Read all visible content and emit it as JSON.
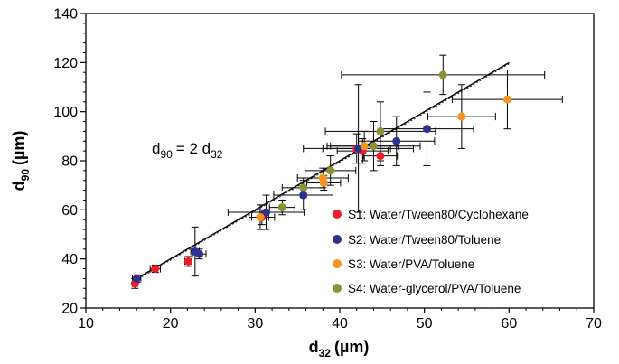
{
  "chart_data": {
    "type": "scatter",
    "xlabel_main": "d",
    "xlabel_sub": "32",
    "xlabel_unit": "(µm)",
    "ylabel_main": "d",
    "ylabel_sub": "90",
    "ylabel_unit": "(µm)",
    "xlim": [
      10,
      70
    ],
    "ylim": [
      20,
      140
    ],
    "x_ticks": [
      10,
      20,
      30,
      40,
      50,
      60,
      70
    ],
    "y_ticks": [
      20,
      40,
      60,
      80,
      100,
      120,
      140
    ],
    "grid": false,
    "legend_position": "bottom-right",
    "annotation": {
      "d_left": "d",
      "sub_left": "90",
      "middle": "= 2 d",
      "sub_right": "32"
    },
    "fit_line": {
      "slope": 2,
      "intercept": 0,
      "x_range": [
        15.5,
        60
      ]
    },
    "series": [
      {
        "name": "S1: Water/Tween80/Cyclohexane",
        "color": "#ee1c25",
        "points": [
          {
            "x": 15.8,
            "y": 30,
            "xerr": 0.3,
            "yerr": 2
          },
          {
            "x": 18.2,
            "y": 36,
            "xerr": 0.6,
            "yerr": 1.5
          },
          {
            "x": 22.1,
            "y": 39,
            "xerr": 0.4,
            "yerr": 2
          },
          {
            "x": 30.8,
            "y": 57,
            "xerr": 1.5,
            "yerr": 3
          },
          {
            "x": 42.0,
            "y": 85,
            "xerr": 4,
            "yerr": 6
          },
          {
            "x": 42.7,
            "y": 84,
            "xerr": 3,
            "yerr": 5
          },
          {
            "x": 44.8,
            "y": 82,
            "xerr": 2,
            "yerr": 4
          }
        ]
      },
      {
        "name": "S2: Water/Tween80/Toluene",
        "color": "#2e3192",
        "points": [
          {
            "x": 16.0,
            "y": 32,
            "xerr": 0.5,
            "yerr": 1.5
          },
          {
            "x": 22.9,
            "y": 43,
            "xerr": 0.5,
            "yerr": 10
          },
          {
            "x": 23.4,
            "y": 42,
            "xerr": 0.8,
            "yerr": 2
          },
          {
            "x": 31.3,
            "y": 59,
            "xerr": 4.5,
            "yerr": 7
          },
          {
            "x": 35.7,
            "y": 66,
            "xerr": 3.5,
            "yerr": 6
          },
          {
            "x": 42.2,
            "y": 85,
            "xerr": 6.5,
            "yerr": 26
          },
          {
            "x": 46.7,
            "y": 88,
            "xerr": 4.5,
            "yerr": 10
          },
          {
            "x": 50.3,
            "y": 93,
            "xerr": 5.5,
            "yerr": 15
          }
        ]
      },
      {
        "name": "S3: Water/PVA/Toluene",
        "color": "#f7941d",
        "points": [
          {
            "x": 30.6,
            "y": 57,
            "xerr": 1,
            "yerr": 5
          },
          {
            "x": 38.0,
            "y": 73,
            "xerr": 3,
            "yerr": 4
          },
          {
            "x": 38.1,
            "y": 71,
            "xerr": 2,
            "yerr": 3
          },
          {
            "x": 42.9,
            "y": 86,
            "xerr": 4,
            "yerr": 6
          },
          {
            "x": 54.4,
            "y": 98,
            "xerr": 4,
            "yerr": 13
          },
          {
            "x": 59.8,
            "y": 105,
            "xerr": 6.5,
            "yerr": 12
          }
        ]
      },
      {
        "name": "S4: Water-glycerol/PVA/Toluene",
        "color": "#8c9131",
        "points": [
          {
            "x": 33.2,
            "y": 61,
            "xerr": 1.5,
            "yerr": 3
          },
          {
            "x": 35.7,
            "y": 69,
            "xerr": 2.5,
            "yerr": 4
          },
          {
            "x": 38.9,
            "y": 76,
            "xerr": 3,
            "yerr": 6
          },
          {
            "x": 44.0,
            "y": 86,
            "xerr": 5.5,
            "yerr": 10
          },
          {
            "x": 44.8,
            "y": 92,
            "xerr": 6.5,
            "yerr": 12
          },
          {
            "x": 52.2,
            "y": 115,
            "xerr": 12,
            "yerr": 8
          }
        ]
      }
    ]
  }
}
